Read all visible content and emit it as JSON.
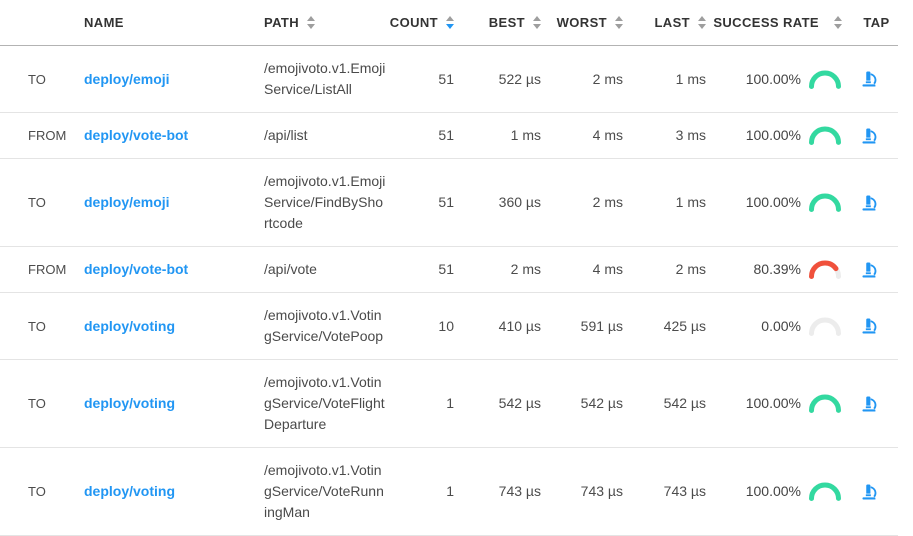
{
  "colors": {
    "accent_blue": "#2196f3",
    "success_green": "#33d9a0",
    "failure_red": "#f0513c",
    "neutral_arc": "#ececec",
    "header_divider": "#b3b3b3",
    "row_divider": "#e4e4e4"
  },
  "icons": {
    "sort": "sort-arrows-icon",
    "tap": "microscope-icon"
  },
  "table": {
    "columns": [
      {
        "key": "direction",
        "label": "",
        "sortable": false,
        "align": "left"
      },
      {
        "key": "name",
        "label": "NAME",
        "sortable": false,
        "align": "left"
      },
      {
        "key": "path",
        "label": "PATH",
        "sortable": true,
        "align": "left"
      },
      {
        "key": "count",
        "label": "COUNT",
        "sortable": true,
        "align": "right",
        "sort": "desc"
      },
      {
        "key": "best",
        "label": "BEST",
        "sortable": true,
        "align": "right"
      },
      {
        "key": "worst",
        "label": "WORST",
        "sortable": true,
        "align": "right"
      },
      {
        "key": "last",
        "label": "LAST",
        "sortable": true,
        "align": "right"
      },
      {
        "key": "success_rate",
        "label": "SUCCESS RATE",
        "sortable": true,
        "align": "right"
      },
      {
        "key": "tap",
        "label": "TAP",
        "sortable": false,
        "align": "left"
      }
    ],
    "rows": [
      {
        "direction": "TO",
        "name": "deploy/emoji",
        "path": "/emojivoto.v1.EmojiService/ListAll",
        "count": "51",
        "best": "522 µs",
        "worst": "2 ms",
        "last": "1 ms",
        "success_text": "100.00%",
        "success_percent": 100,
        "success_status": "good"
      },
      {
        "direction": "FROM",
        "name": "deploy/vote-bot",
        "path": "/api/list",
        "count": "51",
        "best": "1 ms",
        "worst": "4 ms",
        "last": "3 ms",
        "success_text": "100.00%",
        "success_percent": 100,
        "success_status": "good"
      },
      {
        "direction": "TO",
        "name": "deploy/emoji",
        "path": "/emojivoto.v1.EmojiService/FindByShortcode",
        "count": "51",
        "best": "360 µs",
        "worst": "2 ms",
        "last": "1 ms",
        "success_text": "100.00%",
        "success_percent": 100,
        "success_status": "good"
      },
      {
        "direction": "FROM",
        "name": "deploy/vote-bot",
        "path": "/api/vote",
        "count": "51",
        "best": "2 ms",
        "worst": "4 ms",
        "last": "2 ms",
        "success_text": "80.39%",
        "success_percent": 80.39,
        "success_status": "poor"
      },
      {
        "direction": "TO",
        "name": "deploy/voting",
        "path": "/emojivoto.v1.VotingService/VotePoop",
        "count": "10",
        "best": "410 µs",
        "worst": "591 µs",
        "last": "425 µs",
        "success_text": "0.00%",
        "success_percent": 0,
        "success_status": "neutral"
      },
      {
        "direction": "TO",
        "name": "deploy/voting",
        "path": "/emojivoto.v1.VotingService/VoteFlightDeparture",
        "count": "1",
        "best": "542 µs",
        "worst": "542 µs",
        "last": "542 µs",
        "success_text": "100.00%",
        "success_percent": 100,
        "success_status": "good"
      },
      {
        "direction": "TO",
        "name": "deploy/voting",
        "path": "/emojivoto.v1.VotingService/VoteRunningMan",
        "count": "1",
        "best": "743 µs",
        "worst": "743 µs",
        "last": "743 µs",
        "success_text": "100.00%",
        "success_percent": 100,
        "success_status": "good"
      }
    ]
  }
}
